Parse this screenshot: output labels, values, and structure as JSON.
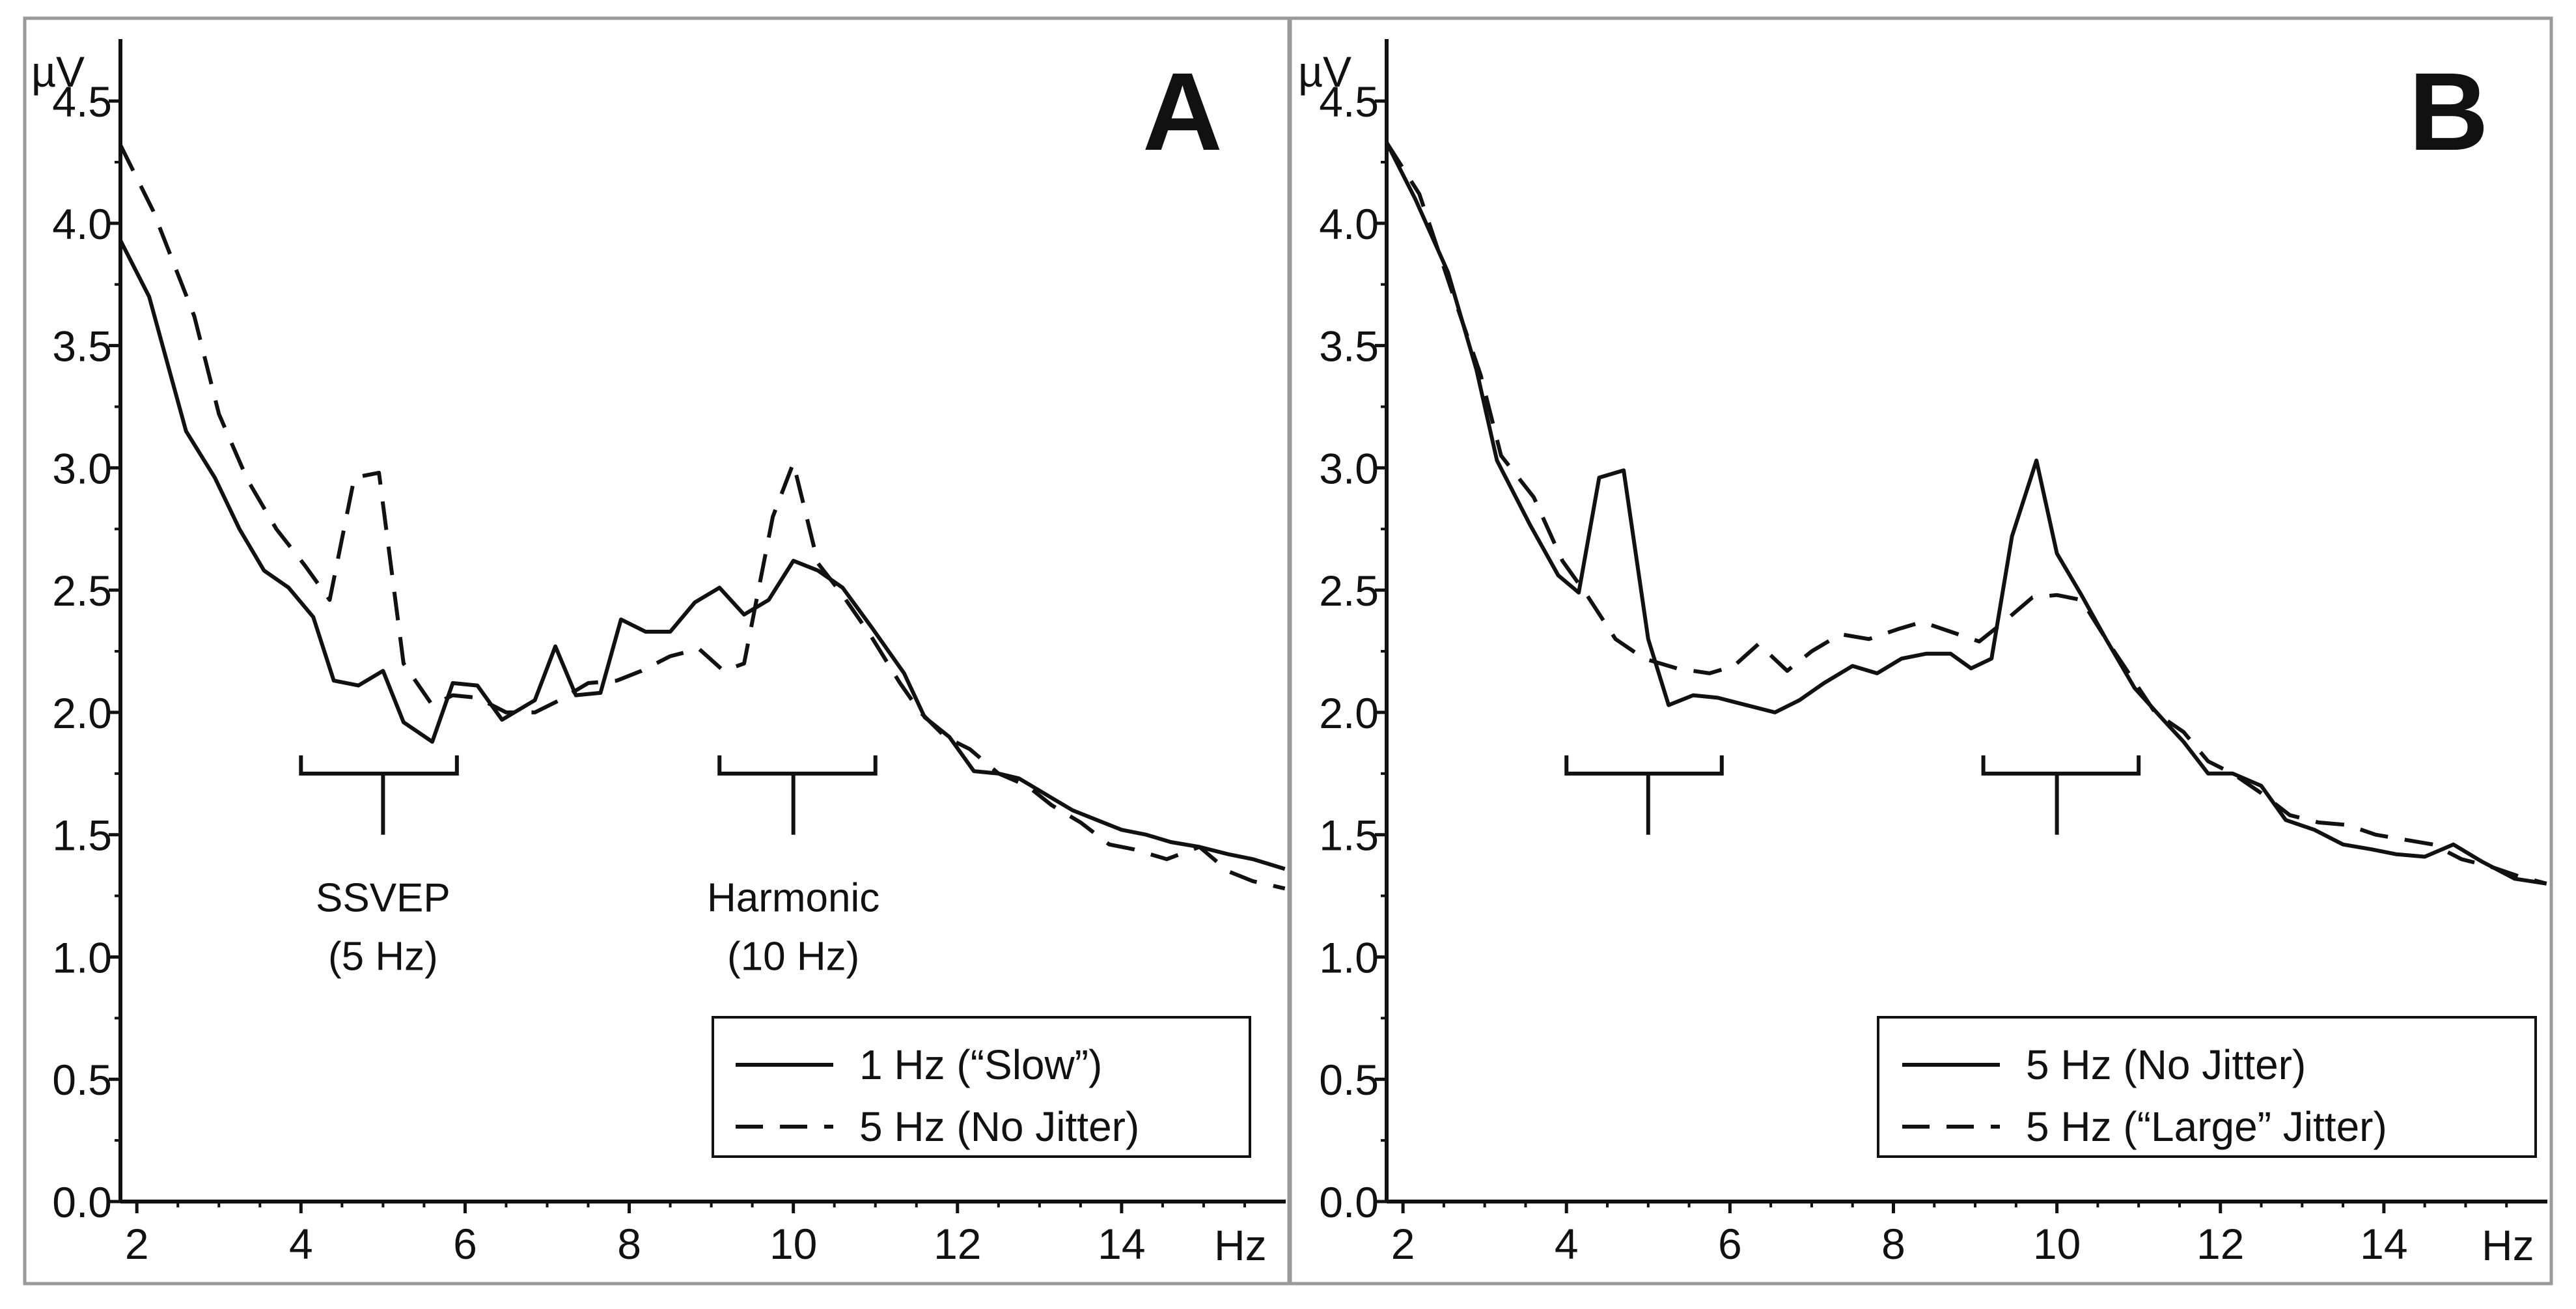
{
  "chart_data": [
    {
      "type": "line",
      "panel_label": "A",
      "ylabel": "µV",
      "xlabel": "Hz",
      "xlim": [
        1.8,
        16
      ],
      "ylim": [
        0,
        4.7
      ],
      "x_ticks": [
        2,
        4,
        6,
        8,
        10,
        12,
        14
      ],
      "y_ticks": [
        0.0,
        0.5,
        1.0,
        1.5,
        2.0,
        2.5,
        3.0,
        3.5,
        4.0,
        4.5
      ],
      "x_tick_labels": [
        "2",
        "4",
        "6",
        "8",
        "10",
        "12",
        "14"
      ],
      "y_tick_labels": [
        "0.0",
        "0.5",
        "1.0",
        "1.5",
        "2.0",
        "2.5",
        "3.0",
        "3.5",
        "4.0",
        "4.5"
      ],
      "legend_position": "bottom-right",
      "series": [
        {
          "name": "1 Hz (“Slow”)",
          "style": "solid",
          "x": [
            1.8,
            2.15,
            2.6,
            2.95,
            3.25,
            3.55,
            3.85,
            4.15,
            4.4,
            4.7,
            5.0,
            5.25,
            5.6,
            5.85,
            6.15,
            6.45,
            6.85,
            7.1,
            7.35,
            7.65,
            7.9,
            8.2,
            8.5,
            8.8,
            9.1,
            9.4,
            9.7,
            10.0,
            10.3,
            10.6,
            10.95,
            11.35,
            11.6,
            11.9,
            12.2,
            12.5,
            12.75,
            13.1,
            13.4,
            13.7,
            14.0,
            14.3,
            14.6,
            14.95,
            15.3,
            15.6,
            15.99
          ],
          "values": [
            3.93,
            3.7,
            3.15,
            2.96,
            2.75,
            2.58,
            2.51,
            2.39,
            2.13,
            2.11,
            2.17,
            1.96,
            1.88,
            2.12,
            2.11,
            1.97,
            2.05,
            2.27,
            2.07,
            2.08,
            2.38,
            2.33,
            2.33,
            2.45,
            2.51,
            2.4,
            2.46,
            2.62,
            2.58,
            2.51,
            2.35,
            2.16,
            1.98,
            1.9,
            1.76,
            1.75,
            1.73,
            1.66,
            1.6,
            1.56,
            1.52,
            1.5,
            1.47,
            1.45,
            1.42,
            1.4,
            1.36
          ]
        },
        {
          "name": "5 Hz (No Jitter)",
          "style": "dashed",
          "x": [
            1.8,
            2.2,
            2.7,
            3.0,
            3.35,
            3.7,
            4.05,
            4.35,
            4.65,
            4.95,
            5.25,
            5.6,
            5.85,
            6.15,
            6.5,
            6.85,
            7.15,
            7.5,
            7.85,
            8.15,
            8.5,
            8.85,
            9.15,
            9.4,
            9.75,
            10.0,
            10.3,
            10.6,
            10.95,
            11.3,
            11.55,
            11.85,
            12.15,
            12.5,
            12.85,
            13.15,
            13.5,
            13.85,
            14.15,
            14.55,
            14.95,
            15.3,
            15.6,
            15.99
          ],
          "values": [
            4.32,
            4.05,
            3.62,
            3.22,
            2.95,
            2.75,
            2.6,
            2.46,
            2.96,
            2.98,
            2.2,
            2.03,
            2.07,
            2.06,
            2.0,
            2.0,
            2.05,
            2.12,
            2.13,
            2.17,
            2.23,
            2.26,
            2.17,
            2.2,
            2.8,
            3.02,
            2.61,
            2.48,
            2.31,
            2.12,
            2.0,
            1.9,
            1.85,
            1.75,
            1.7,
            1.62,
            1.55,
            1.46,
            1.44,
            1.4,
            1.45,
            1.35,
            1.31,
            1.28
          ]
        }
      ],
      "annotations": [
        {
          "text": "SSVEP",
          "text2": "(5 Hz)",
          "range": [
            4.0,
            5.9
          ],
          "center": 5.0
        },
        {
          "text": "Harmonic",
          "text2": "(10 Hz)",
          "range": [
            9.1,
            11.0
          ],
          "center": 10.0
        }
      ]
    },
    {
      "type": "line",
      "panel_label": "B",
      "ylabel": "µV",
      "xlabel": "Hz",
      "xlim": [
        1.8,
        16
      ],
      "ylim": [
        0,
        4.7
      ],
      "x_ticks": [
        2,
        4,
        6,
        8,
        10,
        12,
        14
      ],
      "y_ticks": [
        0.0,
        0.5,
        1.0,
        1.5,
        2.0,
        2.5,
        3.0,
        3.5,
        4.0,
        4.5
      ],
      "x_tick_labels": [
        "2",
        "4",
        "6",
        "8",
        "10",
        "12",
        "14"
      ],
      "y_tick_labels": [
        "0.0",
        "0.5",
        "1.0",
        "1.5",
        "2.0",
        "2.5",
        "3.0",
        "3.5",
        "4.0",
        "4.5"
      ],
      "legend_position": "bottom-right",
      "series": [
        {
          "name": "5 Hz (No Jitter)",
          "style": "solid",
          "x": [
            1.8,
            2.15,
            2.55,
            2.9,
            3.15,
            3.55,
            3.9,
            4.15,
            4.4,
            4.7,
            5.0,
            5.25,
            5.55,
            5.85,
            6.2,
            6.55,
            6.85,
            7.15,
            7.5,
            7.8,
            8.1,
            8.4,
            8.7,
            8.95,
            9.2,
            9.45,
            9.75,
            10.0,
            10.3,
            10.6,
            10.95,
            11.3,
            11.55,
            11.85,
            12.15,
            12.5,
            12.8,
            13.15,
            13.5,
            13.85,
            14.15,
            14.5,
            14.85,
            15.2,
            15.6,
            15.99
          ],
          "values": [
            4.33,
            4.1,
            3.8,
            3.4,
            3.03,
            2.77,
            2.56,
            2.49,
            2.96,
            2.99,
            2.3,
            2.03,
            2.07,
            2.06,
            2.03,
            2.0,
            2.05,
            2.12,
            2.19,
            2.16,
            2.22,
            2.24,
            2.24,
            2.18,
            2.22,
            2.72,
            3.03,
            2.65,
            2.48,
            2.3,
            2.1,
            1.97,
            1.88,
            1.75,
            1.75,
            1.7,
            1.56,
            1.52,
            1.46,
            1.44,
            1.42,
            1.41,
            1.46,
            1.39,
            1.32,
            1.3
          ]
        },
        {
          "name": "5 Hz (“Large” Jitter)",
          "style": "dashed",
          "x": [
            1.8,
            2.2,
            2.6,
            2.95,
            3.2,
            3.6,
            3.95,
            4.25,
            4.6,
            4.95,
            5.35,
            5.75,
            6.05,
            6.35,
            6.7,
            7.0,
            7.35,
            7.7,
            8.05,
            8.35,
            8.7,
            9.05,
            9.35,
            9.7,
            10.0,
            10.3,
            10.6,
            10.9,
            11.2,
            11.55,
            11.85,
            12.15,
            12.5,
            12.85,
            13.2,
            13.55,
            13.9,
            14.25,
            14.6,
            14.95,
            15.3,
            15.65,
            15.99
          ],
          "values": [
            4.33,
            4.12,
            3.72,
            3.38,
            3.05,
            2.88,
            2.62,
            2.48,
            2.3,
            2.22,
            2.18,
            2.16,
            2.19,
            2.28,
            2.17,
            2.25,
            2.32,
            2.3,
            2.34,
            2.37,
            2.33,
            2.29,
            2.37,
            2.47,
            2.48,
            2.46,
            2.3,
            2.15,
            2.0,
            1.92,
            1.8,
            1.75,
            1.67,
            1.58,
            1.55,
            1.54,
            1.5,
            1.48,
            1.46,
            1.4,
            1.37,
            1.33,
            1.3
          ]
        }
      ],
      "annotations": [
        {
          "text": "",
          "text2": "",
          "range": [
            4.0,
            5.9
          ],
          "center": 5.0
        },
        {
          "text": "",
          "text2": "",
          "range": [
            9.1,
            11.0
          ],
          "center": 10.0
        }
      ]
    }
  ]
}
